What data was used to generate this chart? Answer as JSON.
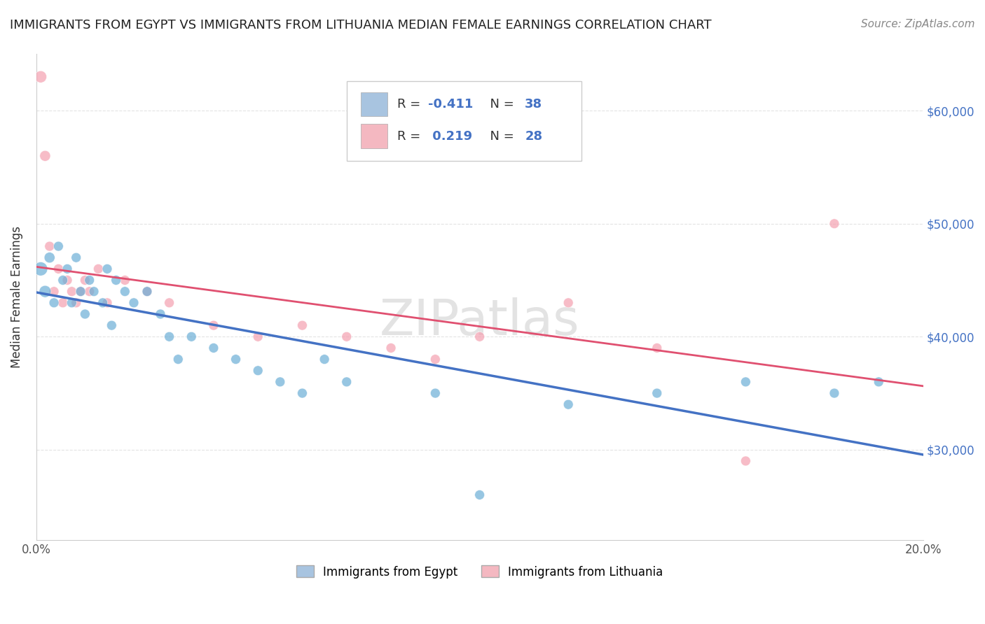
{
  "title": "IMMIGRANTS FROM EGYPT VS IMMIGRANTS FROM LITHUANIA MEDIAN FEMALE EARNINGS CORRELATION CHART",
  "source": "Source: ZipAtlas.com",
  "ylabel": "Median Female Earnings",
  "watermark": "ZIPatlas",
  "legend_entry1": {
    "label": "Immigrants from Egypt",
    "R": "-0.411",
    "N": "38",
    "color": "#a8c4e0"
  },
  "legend_entry2": {
    "label": "Immigrants from Lithuania",
    "R": "0.219",
    "N": "28",
    "color": "#f4b8c1"
  },
  "blue_color": "#6baed6",
  "pink_color": "#f4a0b0",
  "blue_line_color": "#4472c4",
  "pink_line_color": "#e05070",
  "ytick_labels": [
    "$30,000",
    "$40,000",
    "$50,000",
    "$60,000"
  ],
  "ytick_values": [
    30000,
    40000,
    50000,
    60000
  ],
  "xlim": [
    0.0,
    0.2
  ],
  "ylim": [
    22000,
    65000
  ],
  "egypt_x": [
    0.001,
    0.002,
    0.003,
    0.004,
    0.005,
    0.006,
    0.007,
    0.008,
    0.009,
    0.01,
    0.011,
    0.012,
    0.013,
    0.015,
    0.016,
    0.017,
    0.018,
    0.02,
    0.022,
    0.025,
    0.028,
    0.03,
    0.032,
    0.035,
    0.04,
    0.045,
    0.05,
    0.055,
    0.06,
    0.065,
    0.07,
    0.09,
    0.1,
    0.12,
    0.14,
    0.16,
    0.18,
    0.19
  ],
  "egypt_y": [
    46000,
    44000,
    47000,
    43000,
    48000,
    45000,
    46000,
    43000,
    47000,
    44000,
    42000,
    45000,
    44000,
    43000,
    46000,
    41000,
    45000,
    44000,
    43000,
    44000,
    42000,
    40000,
    38000,
    40000,
    39000,
    38000,
    37000,
    36000,
    35000,
    38000,
    36000,
    35000,
    26000,
    34000,
    35000,
    36000,
    35000,
    36000
  ],
  "egypt_sizes": [
    200,
    150,
    120,
    100,
    100,
    100,
    100,
    100,
    100,
    100,
    100,
    100,
    100,
    100,
    100,
    100,
    100,
    100,
    100,
    100,
    100,
    100,
    100,
    100,
    100,
    100,
    100,
    100,
    100,
    100,
    100,
    100,
    100,
    100,
    100,
    100,
    100,
    100
  ],
  "lithuania_x": [
    0.001,
    0.002,
    0.003,
    0.004,
    0.005,
    0.006,
    0.007,
    0.008,
    0.009,
    0.01,
    0.011,
    0.012,
    0.014,
    0.016,
    0.02,
    0.025,
    0.03,
    0.04,
    0.05,
    0.06,
    0.07,
    0.08,
    0.09,
    0.1,
    0.12,
    0.14,
    0.16,
    0.18
  ],
  "lithuania_y": [
    63000,
    56000,
    48000,
    44000,
    46000,
    43000,
    45000,
    44000,
    43000,
    44000,
    45000,
    44000,
    46000,
    43000,
    45000,
    44000,
    43000,
    41000,
    40000,
    41000,
    40000,
    39000,
    38000,
    40000,
    43000,
    39000,
    29000,
    50000
  ],
  "lithuania_sizes": [
    150,
    120,
    100,
    100,
    100,
    100,
    100,
    100,
    100,
    100,
    100,
    100,
    100,
    100,
    100,
    100,
    100,
    100,
    100,
    100,
    100,
    100,
    100,
    100,
    100,
    100,
    100,
    100
  ],
  "background_color": "#ffffff",
  "grid_color": "#dddddd"
}
